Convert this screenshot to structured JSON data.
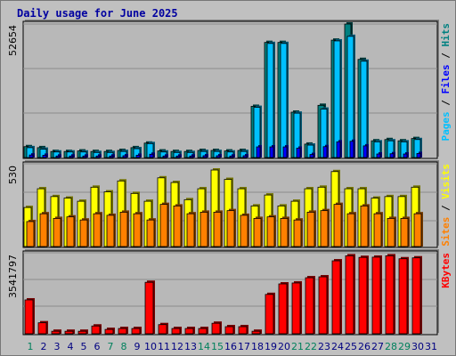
{
  "title": "Daily usage for June 2025",
  "colors": {
    "background": "#c0c0c0",
    "plot_background": "#b8b8b8",
    "gridline": "#8c8c8c",
    "hits": "#008080",
    "files": "#0000ff",
    "pages": "#00c0ff",
    "visits": "#ffff00",
    "sites": "#ff8000",
    "kbytes": "#ff0000",
    "weekend_day_label": "#00805c",
    "weekday_day_label": "#000080",
    "title": "#0000a0"
  },
  "chart_data": [
    {
      "type": "bar",
      "name": "hits-files-pages",
      "ytick": "52654",
      "ylim": [
        0,
        52654
      ],
      "legend": [
        {
          "text": "Pages",
          "color": "#00c0ff"
        },
        {
          "text": "Files",
          "color": "#0000ff"
        },
        {
          "text": "Hits",
          "color": "#008080"
        }
      ],
      "categories": [
        "1",
        "2",
        "3",
        "4",
        "5",
        "6",
        "7",
        "8",
        "9",
        "10",
        "11",
        "12",
        "13",
        "14",
        "15",
        "16",
        "17",
        "18",
        "19",
        "20",
        "21",
        "22",
        "23",
        "24",
        "25",
        "26",
        "27",
        "28",
        "29",
        "30",
        "31"
      ],
      "series": [
        {
          "name": "Hits",
          "color": "#008080",
          "values": [
            4300,
            3900,
            2400,
            2400,
            2600,
            2400,
            2400,
            2800,
            3900,
            5700,
            2600,
            2400,
            2400,
            2800,
            2800,
            2600,
            2800,
            20200,
            45400,
            45400,
            17900,
            5300,
            20600,
            46300,
            52654,
            38700,
            6600,
            7100,
            6600,
            7500,
            0
          ]
        },
        {
          "name": "Files",
          "color": "#0000ff",
          "values": [
            1000,
            900,
            600,
            600,
            600,
            600,
            600,
            700,
            900,
            1300,
            600,
            600,
            600,
            700,
            700,
            600,
            700,
            4200,
            4200,
            4200,
            3700,
            1200,
            4300,
            6200,
            6400,
            4600,
            1400,
            1500,
            1400,
            1600,
            0
          ]
        },
        {
          "name": "Pages",
          "color": "#00c0ff",
          "values": [
            3900,
            3300,
            2200,
            2200,
            2200,
            2000,
            2000,
            2400,
            3500,
            5500,
            2200,
            2000,
            2000,
            2400,
            2400,
            2200,
            2400,
            19800,
            45000,
            45000,
            17500,
            4900,
            19100,
            46000,
            47800,
            38000,
            6200,
            6600,
            6200,
            7100,
            0
          ]
        }
      ]
    },
    {
      "type": "bar",
      "name": "visits-sites",
      "ytick": "530",
      "ylim": [
        0,
        530
      ],
      "legend": [
        {
          "text": "Sites",
          "color": "#ff8000"
        },
        {
          "text": "Visits",
          "color": "#ffff00"
        }
      ],
      "categories": [
        "1",
        "2",
        "3",
        "4",
        "5",
        "6",
        "7",
        "8",
        "9",
        "10",
        "11",
        "12",
        "13",
        "14",
        "15",
        "16",
        "17",
        "18",
        "19",
        "20",
        "21",
        "22",
        "23",
        "24",
        "25",
        "26",
        "27",
        "28",
        "29",
        "30",
        "31"
      ],
      "series": [
        {
          "name": "Visits",
          "color": "#ffff00",
          "values": [
            250,
            370,
            320,
            310,
            290,
            380,
            350,
            420,
            340,
            290,
            440,
            410,
            300,
            370,
            490,
            430,
            370,
            260,
            330,
            260,
            290,
            370,
            380,
            480,
            370,
            370,
            310,
            320,
            320,
            380,
            0
          ]
        },
        {
          "name": "Sites",
          "color": "#ff8000",
          "values": [
            160,
            210,
            180,
            190,
            170,
            210,
            200,
            220,
            210,
            170,
            270,
            260,
            210,
            220,
            220,
            230,
            200,
            180,
            190,
            180,
            170,
            220,
            230,
            270,
            210,
            260,
            210,
            180,
            180,
            210,
            0
          ]
        }
      ]
    },
    {
      "type": "bar",
      "name": "kbytes",
      "ytick": "3541797",
      "ylim": [
        0,
        3541797
      ],
      "legend": [
        {
          "text": "KBytes",
          "color": "#ff0000"
        }
      ],
      "categories": [
        "1",
        "2",
        "3",
        "4",
        "5",
        "6",
        "7",
        "8",
        "9",
        "10",
        "11",
        "12",
        "13",
        "14",
        "15",
        "16",
        "17",
        "18",
        "19",
        "20",
        "21",
        "22",
        "23",
        "24",
        "25",
        "26",
        "27",
        "28",
        "29",
        "30",
        "31"
      ],
      "series": [
        {
          "name": "KBytes",
          "color": "#ff0000",
          "values": [
            1480000,
            480000,
            110000,
            110000,
            110000,
            340000,
            190000,
            230000,
            230000,
            2250000,
            400000,
            230000,
            230000,
            230000,
            460000,
            310000,
            310000,
            110000,
            1720000,
            2180000,
            2220000,
            2450000,
            2490000,
            3190000,
            3410000,
            3340000,
            3350000,
            3410000,
            3280000,
            3320000,
            0
          ]
        }
      ]
    }
  ],
  "x_days": [
    {
      "label": "1",
      "weekend": true
    },
    {
      "label": "2",
      "weekend": false
    },
    {
      "label": "3",
      "weekend": false
    },
    {
      "label": "4",
      "weekend": false
    },
    {
      "label": "5",
      "weekend": false
    },
    {
      "label": "6",
      "weekend": false
    },
    {
      "label": "7",
      "weekend": true
    },
    {
      "label": "8",
      "weekend": true
    },
    {
      "label": "9",
      "weekend": false
    },
    {
      "label": "10",
      "weekend": false
    },
    {
      "label": "11",
      "weekend": false
    },
    {
      "label": "12",
      "weekend": false
    },
    {
      "label": "13",
      "weekend": false
    },
    {
      "label": "14",
      "weekend": true
    },
    {
      "label": "15",
      "weekend": true
    },
    {
      "label": "16",
      "weekend": false
    },
    {
      "label": "17",
      "weekend": false
    },
    {
      "label": "18",
      "weekend": false
    },
    {
      "label": "19",
      "weekend": false
    },
    {
      "label": "20",
      "weekend": false
    },
    {
      "label": "21",
      "weekend": true
    },
    {
      "label": "22",
      "weekend": true
    },
    {
      "label": "23",
      "weekend": false
    },
    {
      "label": "24",
      "weekend": false
    },
    {
      "label": "25",
      "weekend": false
    },
    {
      "label": "26",
      "weekend": false
    },
    {
      "label": "27",
      "weekend": false
    },
    {
      "label": "28",
      "weekend": true
    },
    {
      "label": "29",
      "weekend": true
    },
    {
      "label": "30",
      "weekend": false
    },
    {
      "label": "31",
      "weekend": false
    }
  ]
}
